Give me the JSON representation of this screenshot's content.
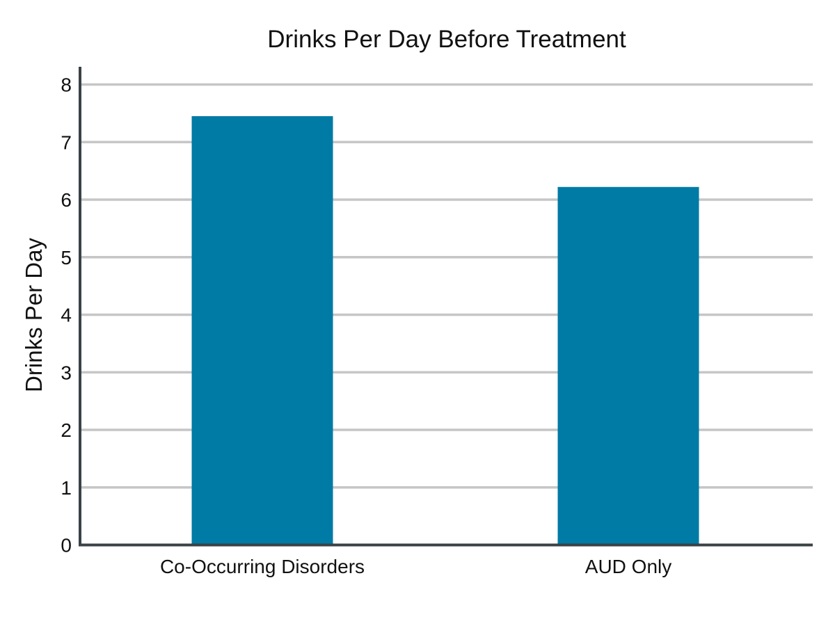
{
  "chart_data": {
    "type": "bar",
    "title": "Drinks Per Day Before Treatment",
    "xlabel": "",
    "ylabel": "Drinks Per Day",
    "categories": [
      "Co-Occurring Disorders",
      "AUD Only"
    ],
    "values": [
      7.45,
      6.22
    ],
    "ylim": [
      0,
      8
    ],
    "yticks": [
      "0",
      "1",
      "2",
      "3",
      "4",
      "5",
      "6",
      "7",
      "8"
    ],
    "grid": true,
    "legend": "none",
    "colors": {
      "bar": "#007ba5",
      "grid": "#c6c6c6",
      "axis": "#3a4246"
    }
  }
}
